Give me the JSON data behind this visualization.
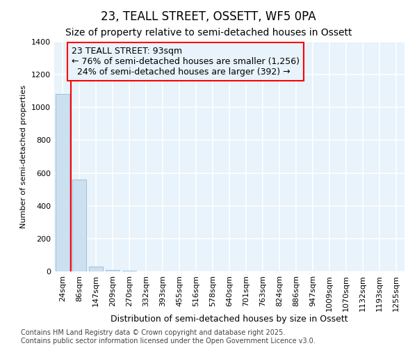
{
  "title": "23, TEALL STREET, OSSETT, WF5 0PA",
  "subtitle": "Size of property relative to semi-detached houses in Ossett",
  "xlabel": "Distribution of semi-detached houses by size in Ossett",
  "ylabel": "Number of semi-detached properties",
  "categories": [
    "24sqm",
    "86sqm",
    "147sqm",
    "209sqm",
    "270sqm",
    "332sqm",
    "393sqm",
    "455sqm",
    "516sqm",
    "578sqm",
    "640sqm",
    "701sqm",
    "763sqm",
    "824sqm",
    "886sqm",
    "947sqm",
    "1009sqm",
    "1070sqm",
    "1132sqm",
    "1193sqm",
    "1255sqm"
  ],
  "values": [
    1080,
    560,
    30,
    8,
    4,
    2,
    1,
    0,
    0,
    0,
    0,
    0,
    0,
    0,
    0,
    0,
    0,
    0,
    0,
    0,
    0
  ],
  "bar_color": "#cce0f0",
  "bar_edge_color": "#a0c4df",
  "property_line_x": 0.5,
  "annotation_line1": "23 TEALL STREET: 93sqm",
  "annotation_line2": "← 76% of semi-detached houses are smaller (1,256)",
  "annotation_line3": "  24% of semi-detached houses are larger (392) →",
  "ylim": [
    0,
    1400
  ],
  "yticks": [
    0,
    200,
    400,
    600,
    800,
    1000,
    1200,
    1400
  ],
  "plot_bg_color": "#e8f3fb",
  "fig_bg_color": "#ffffff",
  "grid_color": "#ffffff",
  "footer_line1": "Contains HM Land Registry data © Crown copyright and database right 2025.",
  "footer_line2": "Contains public sector information licensed under the Open Government Licence v3.0.",
  "title_fontsize": 12,
  "subtitle_fontsize": 10,
  "annotation_fontsize": 9,
  "ylabel_fontsize": 8,
  "xlabel_fontsize": 9,
  "tick_fontsize": 8,
  "footer_fontsize": 7
}
